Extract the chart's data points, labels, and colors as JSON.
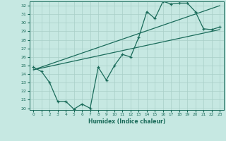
{
  "title": "",
  "xlabel": "Humidex (Indice chaleur)",
  "xlim": [
    -0.5,
    23.5
  ],
  "ylim": [
    19.8,
    32.5
  ],
  "xticks": [
    0,
    1,
    2,
    3,
    4,
    5,
    6,
    7,
    8,
    9,
    10,
    11,
    12,
    13,
    14,
    15,
    16,
    17,
    18,
    19,
    20,
    21,
    22,
    23
  ],
  "yticks": [
    20,
    21,
    22,
    23,
    24,
    25,
    26,
    27,
    28,
    29,
    30,
    31,
    32
  ],
  "bg_color": "#c6e8e2",
  "line_color": "#1a6b5a",
  "grid_color": "#a8cfc8",
  "series1_x": [
    0,
    1,
    2,
    3,
    4,
    5,
    6,
    7,
    8,
    9,
    10,
    11,
    12,
    13,
    14,
    15,
    16,
    17,
    18,
    19,
    20,
    21,
    22,
    23
  ],
  "series1_y": [
    24.8,
    24.3,
    23.0,
    20.8,
    20.8,
    19.9,
    20.5,
    20.0,
    24.8,
    23.3,
    25.0,
    26.3,
    26.0,
    28.3,
    31.3,
    30.5,
    32.5,
    32.2,
    32.3,
    32.3,
    31.3,
    29.3,
    29.2,
    29.5
  ],
  "series2_x": [
    0,
    23
  ],
  "series2_y": [
    24.5,
    29.2
  ],
  "series3_x": [
    0,
    23
  ],
  "series3_y": [
    24.5,
    32.0
  ]
}
